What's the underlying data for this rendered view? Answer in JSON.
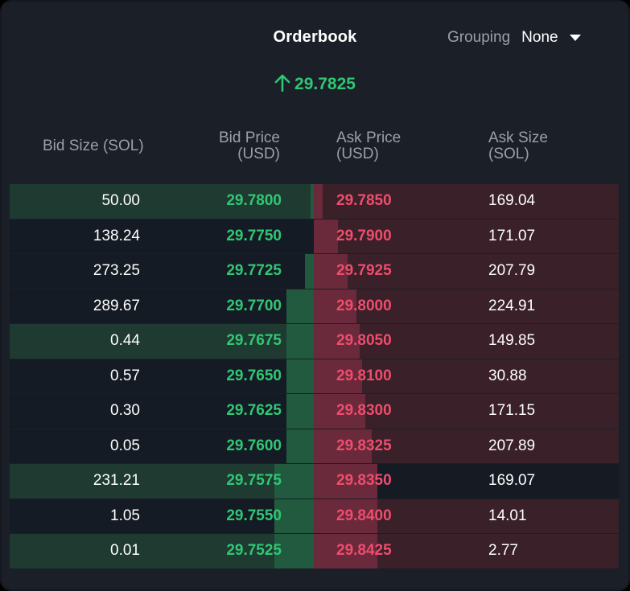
{
  "header": {
    "title": "Orderbook",
    "grouping_label": "Grouping",
    "grouping_value": "None",
    "spread_value": "29.7825",
    "spread_icon": "arrow-up-icon"
  },
  "columns": {
    "bid_size": "Bid Size (SOL)",
    "bid_price_line1": "Bid Price",
    "bid_price_line2": "(USD)",
    "ask_price_line1": "Ask Price",
    "ask_price_line2": "(USD)",
    "ask_size_line1": "Ask Size",
    "ask_size_line2": "(SOL)"
  },
  "colors": {
    "bid": "#2fc774",
    "ask": "#f04c6d",
    "panel": "#1b1f27"
  },
  "rows": [
    {
      "bid_size": "50.00",
      "bid_price": "29.7800",
      "ask_price": "29.7850",
      "ask_size": "169.04",
      "bid_depth": 0.01,
      "ask_depth": 0.03
    },
    {
      "bid_size": "138.24",
      "bid_price": "29.7750",
      "ask_price": "29.7900",
      "ask_size": "171.07",
      "bid_depth": 0.0,
      "ask_depth": 0.08
    },
    {
      "bid_size": "273.25",
      "bid_price": "29.7725",
      "ask_price": "29.7925",
      "ask_size": "207.79",
      "bid_depth": 0.03,
      "ask_depth": 0.11
    },
    {
      "bid_size": "289.67",
      "bid_price": "29.7700",
      "ask_price": "29.8000",
      "ask_size": "224.91",
      "bid_depth": 0.09,
      "ask_depth": 0.14
    },
    {
      "bid_size": "0.44",
      "bid_price": "29.7675",
      "ask_price": "29.8050",
      "ask_size": "149.85",
      "bid_depth": 0.09,
      "ask_depth": 0.15
    },
    {
      "bid_size": "0.57",
      "bid_price": "29.7650",
      "ask_price": "29.8100",
      "ask_size": "30.88",
      "bid_depth": 0.09,
      "ask_depth": 0.16
    },
    {
      "bid_size": "0.30",
      "bid_price": "29.7625",
      "ask_price": "29.8300",
      "ask_size": "171.15",
      "bid_depth": 0.09,
      "ask_depth": 0.17
    },
    {
      "bid_size": "0.05",
      "bid_price": "29.7600",
      "ask_price": "29.8325",
      "ask_size": "207.89",
      "bid_depth": 0.09,
      "ask_depth": 0.19
    },
    {
      "bid_size": "231.21",
      "bid_price": "29.7575",
      "ask_price": "29.8350",
      "ask_size": "169.07",
      "bid_depth": 0.13,
      "ask_depth": 0.21
    },
    {
      "bid_size": "1.05",
      "bid_price": "29.7550",
      "ask_price": "29.8400",
      "ask_size": "14.01",
      "bid_depth": 0.13,
      "ask_depth": 0.21
    },
    {
      "bid_size": "0.01",
      "bid_price": "29.7525",
      "ask_price": "29.8425",
      "ask_size": "2.77",
      "bid_depth": 0.13,
      "ask_depth": 0.21
    }
  ]
}
